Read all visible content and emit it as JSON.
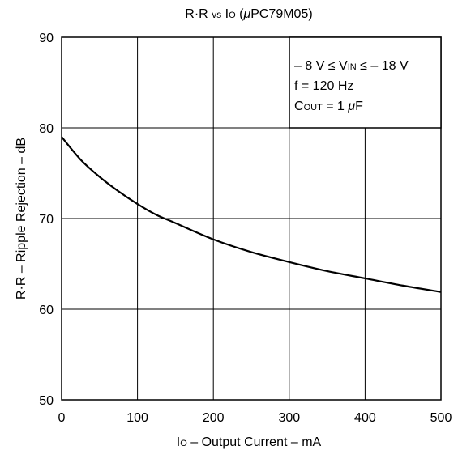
{
  "chart_data": {
    "type": "line",
    "title": {
      "main": "R·R",
      "vs": "vs",
      "io": "I",
      "io_sub": "O",
      "device_prefix": " (",
      "mu": "μ",
      "device": "PC79M05)"
    },
    "xlabel": {
      "io": "I",
      "io_sub": "O",
      "rest": " – Output Current – mA"
    },
    "ylabel": "R·R – Ripple Rejection – dB",
    "xlim": [
      0,
      500
    ],
    "ylim": [
      50,
      90
    ],
    "xticks": [
      0,
      100,
      200,
      300,
      400,
      500
    ],
    "yticks": [
      50,
      60,
      70,
      80,
      90
    ],
    "xtick_labels": [
      "0",
      "100",
      "200",
      "300",
      "400",
      "500"
    ],
    "ytick_labels": [
      "50",
      "60",
      "70",
      "80",
      "90"
    ],
    "grid": true,
    "legend": null,
    "annotation": {
      "line1_a": "– 8 V ≤ V",
      "line1_sub": "IN",
      "line1_b": " ≤ – 18 V",
      "line2": "f = 120 Hz",
      "line3_a": "C",
      "line3_sub": "OUT",
      "line3_b": " = 1 ",
      "line3_mu": "μ",
      "line3_c": "F"
    },
    "series": [
      {
        "x": [
          0,
          25,
          50,
          75,
          100,
          125,
          150,
          200,
          250,
          300,
          350,
          400,
          450,
          500
        ],
        "y": [
          79.0,
          76.5,
          74.6,
          73.0,
          71.6,
          70.4,
          69.5,
          67.7,
          66.3,
          65.2,
          64.2,
          63.4,
          62.6,
          61.9
        ]
      }
    ]
  }
}
